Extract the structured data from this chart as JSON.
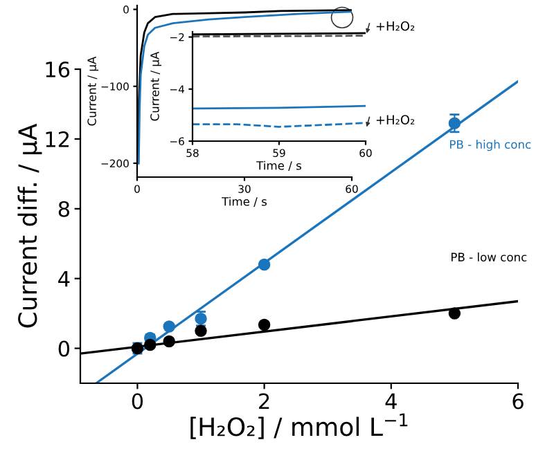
{
  "chart_data": [
    {
      "type": "scatter",
      "xlabel": "[H₂O₂] / mmol L$^{−1}$",
      "ylabel": "Current diff. / μA",
      "xlim": [
        -0.9,
        6
      ],
      "ylim": [
        -2,
        16
      ],
      "xticks": [
        0,
        2,
        4,
        6
      ],
      "yticks": [
        0,
        4,
        8,
        12,
        16
      ],
      "series": [
        {
          "name": "PB - high conc",
          "marker": "circle",
          "color": "#1a75bc",
          "x": [
            0,
            0.2,
            0.5,
            1,
            2,
            5
          ],
          "values": [
            0,
            0.6,
            1.25,
            1.7,
            4.8,
            12.9
          ],
          "errors": [
            0.3,
            0.2,
            0.15,
            0.4,
            0.15,
            0.5
          ]
        },
        {
          "name": "PB - low conc",
          "marker": "circle",
          "color": "#000000",
          "x": [
            0,
            0.2,
            0.5,
            1,
            2,
            5
          ],
          "values": [
            0,
            0.2,
            0.4,
            1.0,
            1.35,
            2.0
          ]
        },
        {
          "type": "line",
          "color": "#1a75bc",
          "x": [
            -0.65,
            6
          ],
          "values": [
            -2,
            15.3
          ]
        },
        {
          "type": "line",
          "color": "#000000",
          "x": [
            -0.9,
            6
          ],
          "values": [
            -0.3,
            2.7
          ]
        }
      ]
    },
    {
      "type": "line",
      "xlabel": "Time / s",
      "ylabel": "Current / μA",
      "xlim": [
        0,
        60
      ],
      "ylim": [
        -218,
        5
      ],
      "xticks": [
        0,
        30,
        60
      ],
      "yticks": [
        0,
        -100,
        -200
      ],
      "series": [
        {
          "color": "#000000",
          "x": [
            0.3,
            0.5,
            1,
            2,
            3,
            5,
            10,
            20,
            30,
            40,
            60
          ],
          "values": [
            -200,
            -120,
            -60,
            -30,
            -18,
            -10,
            -6,
            -5,
            -4,
            -2,
            -1
          ]
        },
        {
          "color": "#1a75bc",
          "x": [
            0.45,
            0.7,
            1,
            2,
            3,
            5,
            10,
            20,
            30,
            45,
            60
          ],
          "values": [
            -200,
            -130,
            -85,
            -48,
            -33,
            -24,
            -18,
            -13,
            -10,
            -6,
            -3
          ]
        }
      ]
    },
    {
      "type": "line",
      "xlabel": "Time / s",
      "ylabel": "Current / μA",
      "xlim": [
        58,
        60
      ],
      "ylim": [
        -6,
        -1.8
      ],
      "xticks": [
        58,
        59,
        60
      ],
      "yticks": [
        -2,
        -4,
        -6
      ],
      "annotations": [
        {
          "text": "+H₂O₂",
          "x": 60,
          "y": -2.0
        },
        {
          "text": "+H₂O₂",
          "x": 60,
          "y": -5.6
        }
      ],
      "series": [
        {
          "color": "#000000",
          "x": [
            58,
            60
          ],
          "values": [
            -1.9,
            -1.85
          ]
        },
        {
          "color": "#555555",
          "line_style": "dashed",
          "x": [
            58,
            60
          ],
          "values": [
            -1.98,
            -1.95
          ]
        },
        {
          "color": "#1a75bc",
          "x": [
            58,
            59,
            60
          ],
          "values": [
            -4.75,
            -4.72,
            -4.65
          ]
        },
        {
          "color": "#1a75bc",
          "line_style": "dashed",
          "x": [
            58,
            58.5,
            59,
            59.5,
            60
          ],
          "values": [
            -5.35,
            -5.35,
            -5.45,
            -5.38,
            -5.3
          ]
        }
      ]
    }
  ]
}
